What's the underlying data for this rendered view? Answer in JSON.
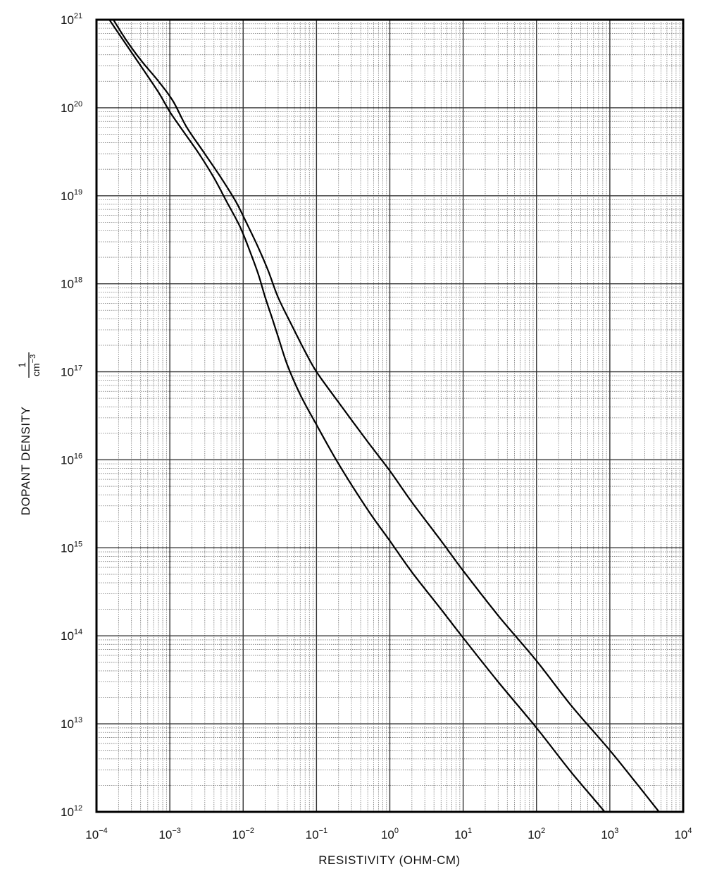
{
  "chart_data": {
    "type": "line",
    "xscale": "log",
    "yscale": "log",
    "xlim": [
      0.0001,
      10000
    ],
    "ylim": [
      1000000000000.0,
      1e+21
    ],
    "xlabel": "RESISTIVITY (OHM-CM)",
    "ylabel": "DOPANT DENSITY",
    "ylabel_unit": {
      "numerator": "1",
      "denominator": "cm",
      "denominator_exp": "−3"
    },
    "x_ticks": [
      {
        "base": "10",
        "exp": "−4"
      },
      {
        "base": "10",
        "exp": "−3"
      },
      {
        "base": "10",
        "exp": "−2"
      },
      {
        "base": "10",
        "exp": "−1"
      },
      {
        "base": "10",
        "exp": "0"
      },
      {
        "base": "10",
        "exp": "1"
      },
      {
        "base": "10",
        "exp": "2"
      },
      {
        "base": "10",
        "exp": "3"
      },
      {
        "base": "10",
        "exp": "4"
      }
    ],
    "y_ticks": [
      {
        "base": "10",
        "exp": "12"
      },
      {
        "base": "10",
        "exp": "13"
      },
      {
        "base": "10",
        "exp": "14"
      },
      {
        "base": "10",
        "exp": "15"
      },
      {
        "base": "10",
        "exp": "16"
      },
      {
        "base": "10",
        "exp": "17"
      },
      {
        "base": "10",
        "exp": "18"
      },
      {
        "base": "10",
        "exp": "19"
      },
      {
        "base": "10",
        "exp": "20"
      },
      {
        "base": "10",
        "exp": "21"
      }
    ],
    "grid": true,
    "series": [
      {
        "x": [
          0.00017,
          0.00025,
          0.0004,
          0.0007,
          0.0011,
          0.0017,
          0.003,
          0.005,
          0.008,
          0.011,
          0.016,
          0.022,
          0.03,
          0.045,
          0.07,
          0.1,
          0.2,
          0.5,
          1,
          2,
          5,
          10,
          30,
          100,
          300,
          1000,
          3000,
          10000
        ],
        "y": [
          1e+21,
          6e+20,
          3.5e+20,
          2e+20,
          1.2e+20,
          6e+19,
          3e+19,
          1.6e+19,
          8.5e+18,
          5e+18,
          2.6e+18,
          1.4e+18,
          7e+17,
          3.5e+17,
          1.7e+17,
          1e+17,
          4.5e+16,
          1.6e+16,
          7500000000000000.0,
          3300000000000000.0,
          1200000000000000.0,
          550000000000000.0,
          170000000000000.0,
          52000000000000.0,
          16000000000000.0,
          5000000000000.0,
          1600000000000.0,
          450000000000.0
        ]
      },
      {
        "x": [
          0.00015,
          0.0002,
          0.0004,
          0.0007,
          0.001,
          0.0015,
          0.0025,
          0.004,
          0.006,
          0.009,
          0.012,
          0.016,
          0.02,
          0.025,
          0.03,
          0.04,
          0.06,
          0.1,
          0.2,
          0.5,
          1,
          2,
          5,
          10,
          30,
          100,
          300,
          1000,
          3000
        ],
        "y": [
          1e+21,
          7e+20,
          3e+20,
          1.5e+20,
          9e+19,
          5.5e+19,
          3e+19,
          1.6e+19,
          8.5e+18,
          4.5e+18,
          2.5e+18,
          1.3e+18,
          7e+17,
          4e+17,
          2.5e+17,
          1.2e+17,
          5.5e+16,
          2.5e+16,
          9000000000000000.0,
          2700000000000000.0,
          1200000000000000.0,
          530000000000000.0,
          200000000000000.0,
          95000000000000.0,
          30000000000000.0,
          9000000000000.0,
          2800000000000.0,
          850000000000.0,
          260000000000.0
        ]
      }
    ]
  }
}
